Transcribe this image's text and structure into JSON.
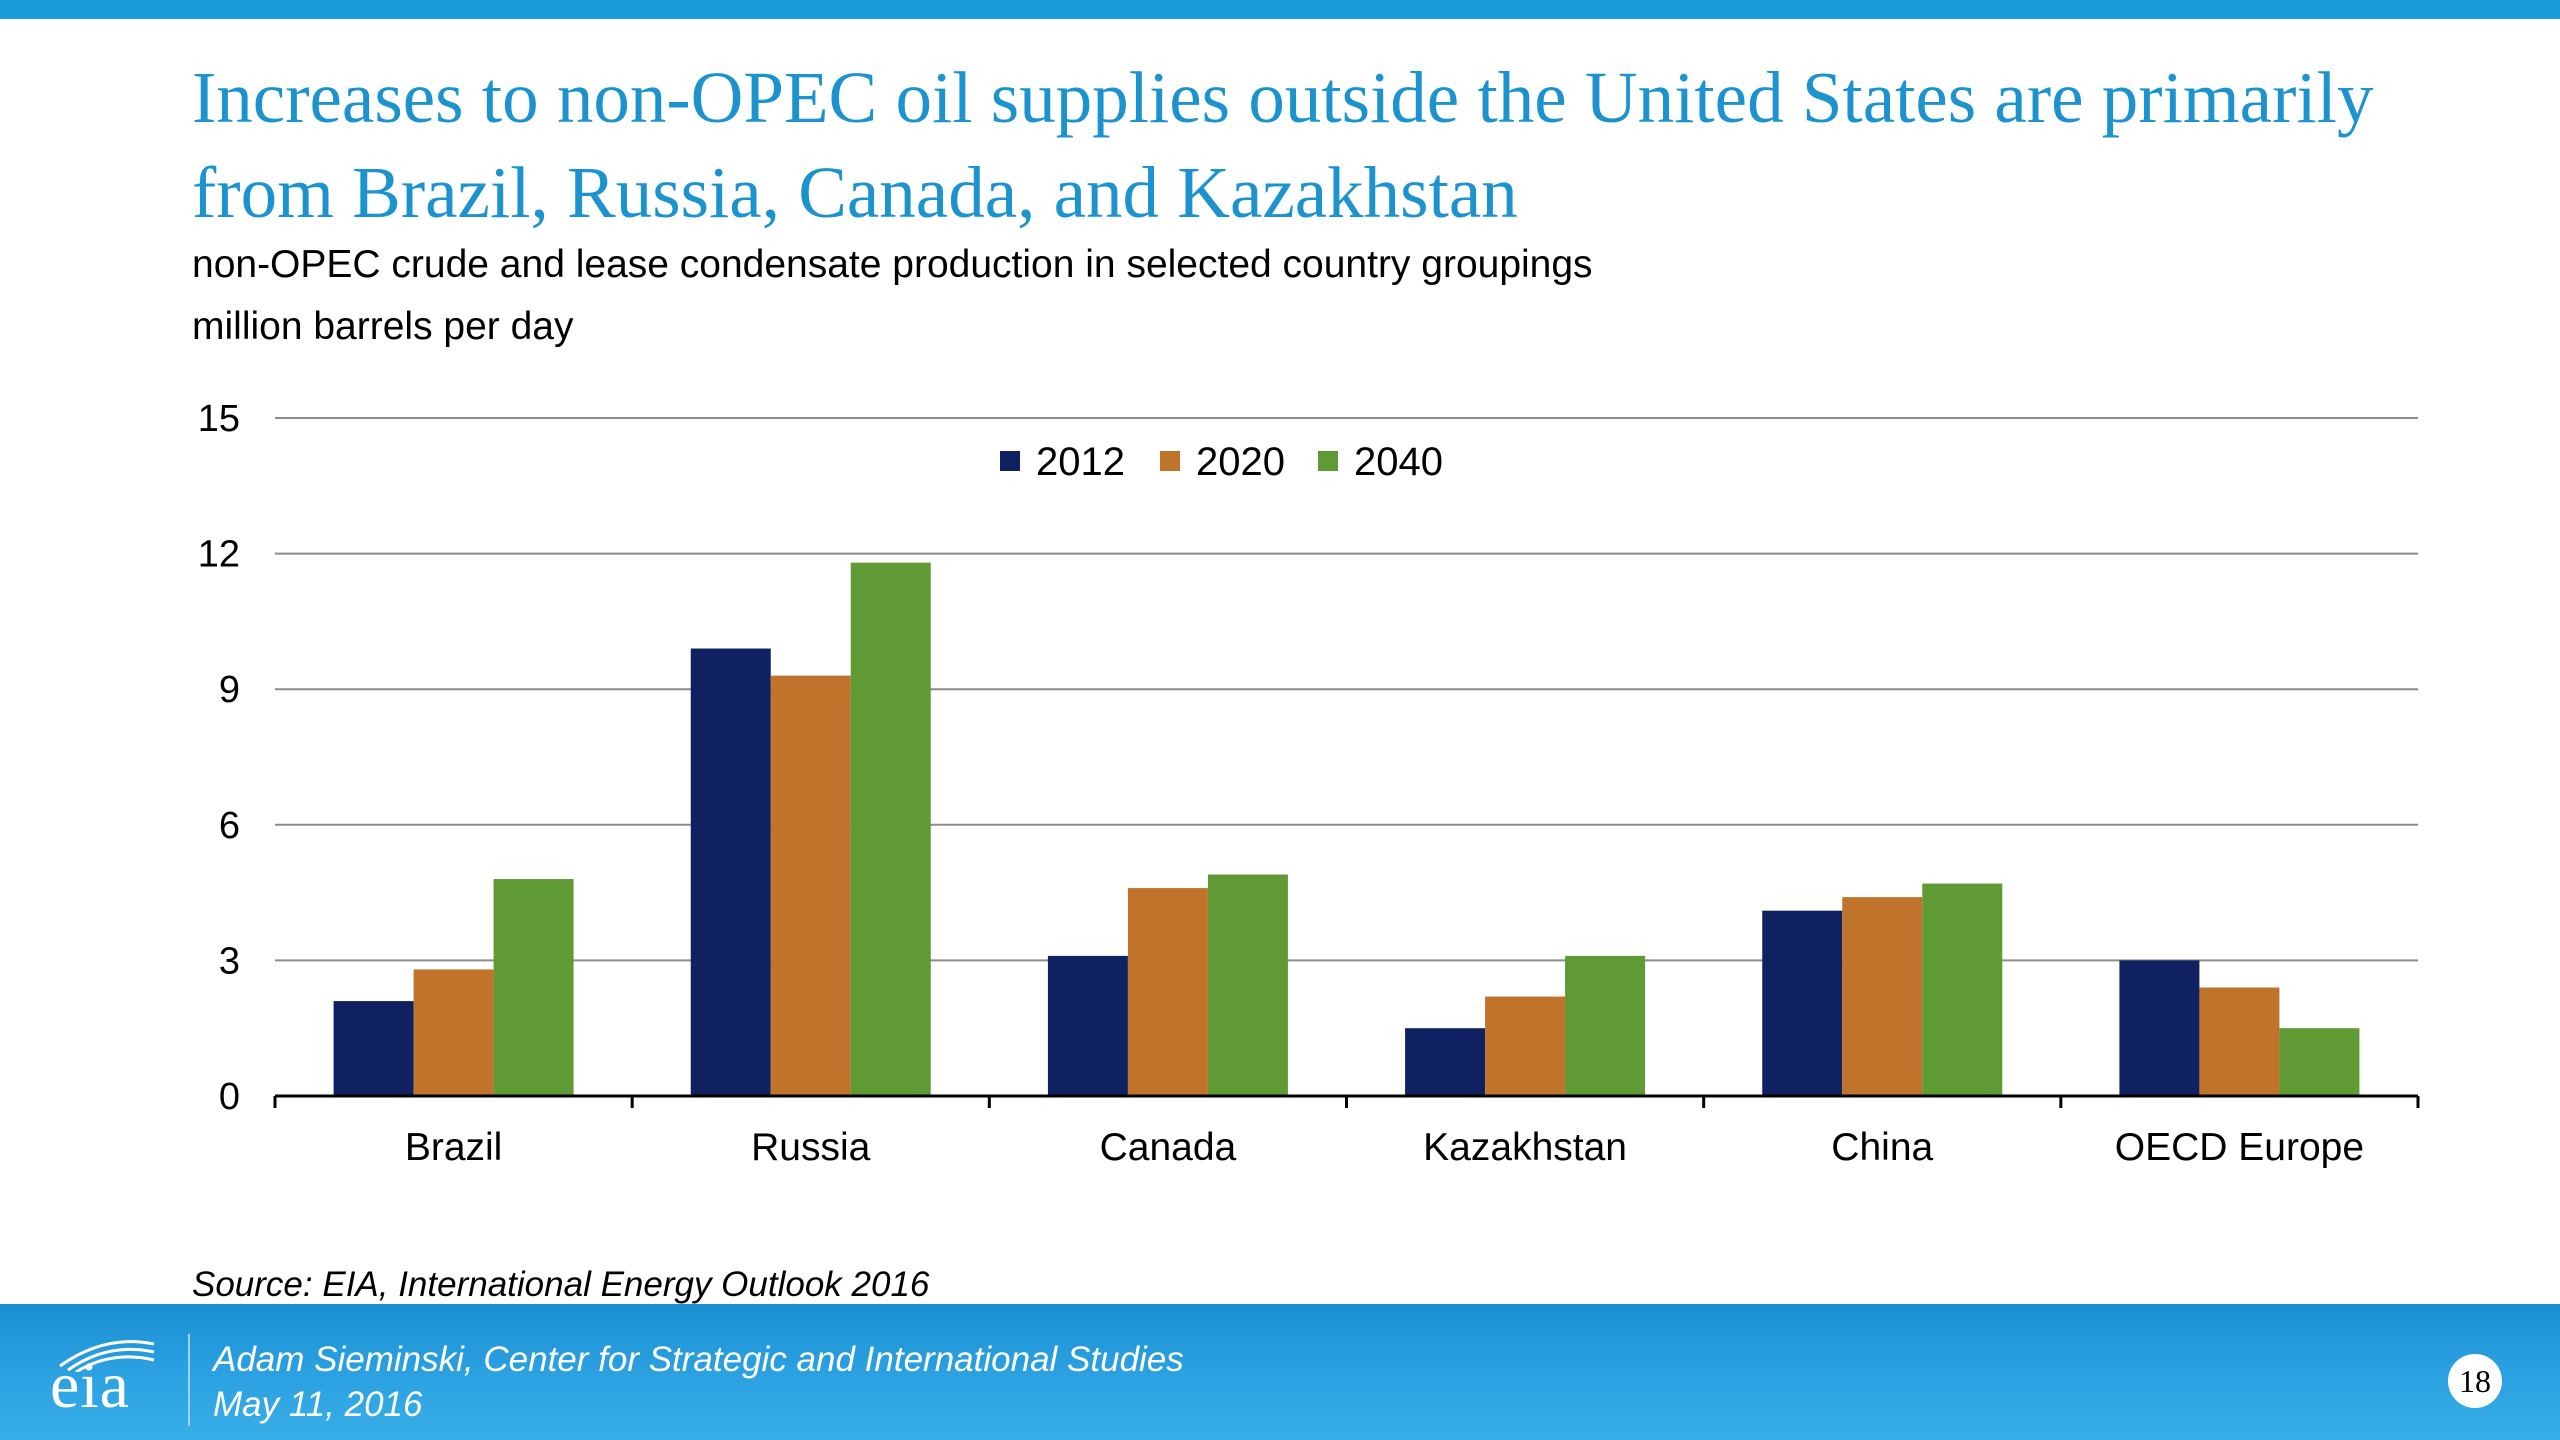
{
  "slide": {
    "title": "Increases to non-OPEC oil supplies outside the United States are primarily from Brazil, Russia, Canada, and Kazakhstan",
    "subtitle": "non-OPEC crude and lease condensate production in selected country groupings",
    "units": "million barrels per day",
    "source": "Source:  EIA, International Energy Outlook 2016"
  },
  "footer": {
    "logo": "eia",
    "presenter": "Adam Sieminski, Center for Strategic and International Studies",
    "date": "May 11, 2016",
    "page_number": "18"
  },
  "colors": {
    "title": "#1c93cf",
    "banner": "#1a9cd8",
    "series_2012": "#0f2160",
    "series_2020": "#c0732a",
    "series_2040": "#5f9a35"
  },
  "chart_data": {
    "type": "bar",
    "categories": [
      "Brazil",
      "Russia",
      "Canada",
      "Kazakhstan",
      "China",
      "OECD Europe"
    ],
    "series": [
      {
        "name": "2012",
        "values": [
          2.1,
          9.9,
          3.1,
          1.5,
          4.1,
          3.0
        ],
        "color": "#0f2160"
      },
      {
        "name": "2020",
        "values": [
          2.8,
          9.3,
          4.6,
          2.2,
          4.4,
          2.4
        ],
        "color": "#c0732a"
      },
      {
        "name": "2040",
        "values": [
          4.8,
          11.8,
          4.9,
          3.1,
          4.7,
          1.5
        ],
        "color": "#5f9a35"
      }
    ],
    "yticks": [
      "0",
      "3",
      "6",
      "9",
      "12",
      "15"
    ],
    "ylim": [
      0,
      15
    ],
    "grid": true,
    "legend_position": "top-center"
  }
}
